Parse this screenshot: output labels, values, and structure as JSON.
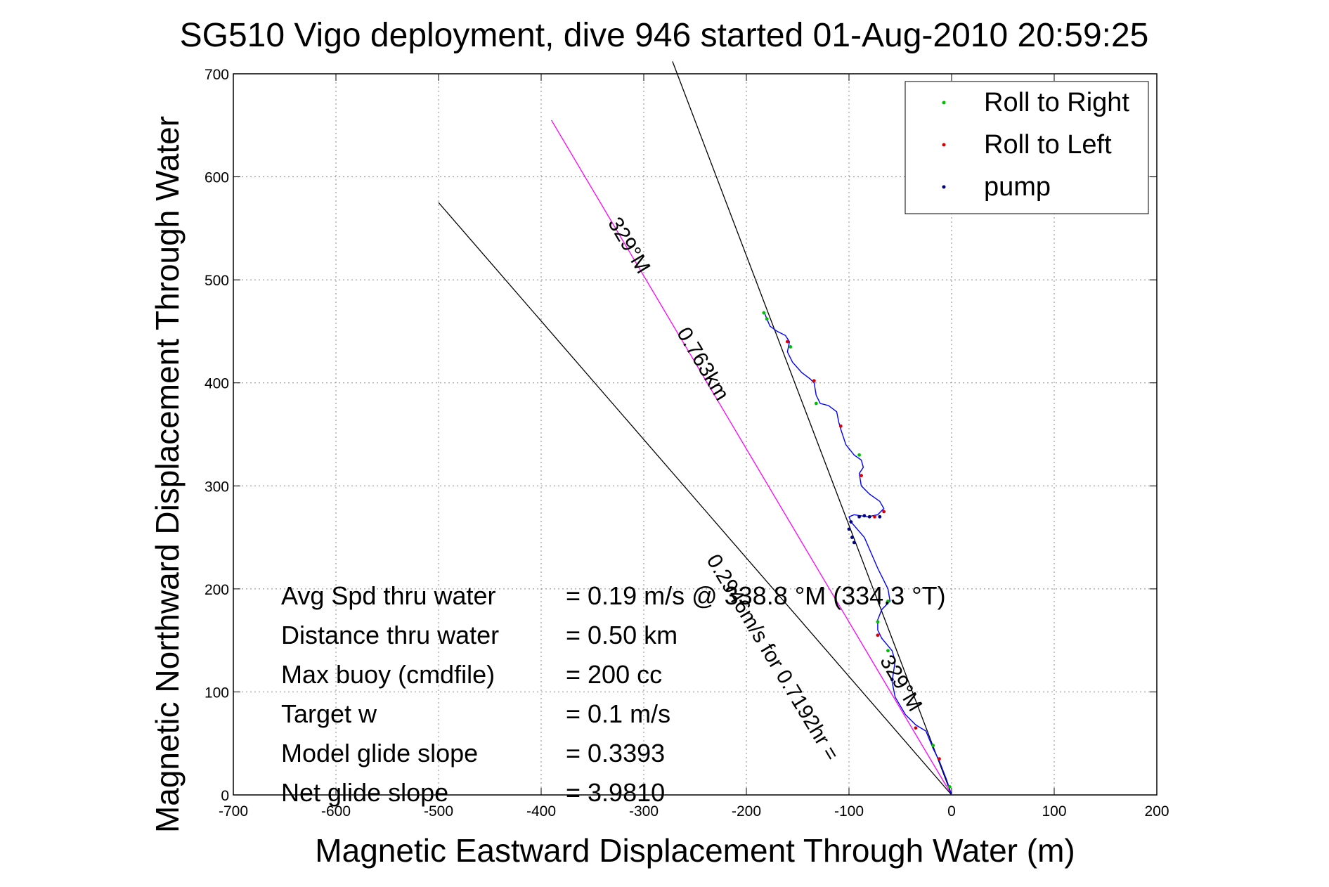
{
  "chart_data": {
    "type": "line",
    "title": "SG510 Vigo deployment, dive 946 started 01-Aug-2010 20:59:25",
    "xlabel": "Magnetic Eastward Displacement Through Water (m)",
    "ylabel": "Magnetic Northward Displacement Through Water",
    "xlim": [
      -700,
      200
    ],
    "ylim": [
      0,
      700
    ],
    "xticks": [
      "-700",
      "-600",
      "-500",
      "-400",
      "-300",
      "-200",
      "-100",
      "0",
      "100",
      "200"
    ],
    "yticks": [
      "0",
      "100",
      "200",
      "300",
      "400",
      "500",
      "600",
      "700"
    ],
    "xtick_values": [
      -700,
      -600,
      -500,
      -400,
      -300,
      -200,
      -100,
      0,
      100,
      200
    ],
    "ytick_values": [
      0,
      100,
      200,
      300,
      400,
      500,
      600,
      700
    ],
    "grid": true,
    "legend": {
      "placement": "top-right",
      "entries": [
        {
          "label": "Roll to Right",
          "color": "#00c000"
        },
        {
          "label": "Roll to Left",
          "color": "#e00000"
        },
        {
          "label": "pump",
          "color": "#000080"
        }
      ]
    },
    "track": {
      "color": "#0000ff",
      "points": [
        [
          0,
          0
        ],
        [
          -5,
          15
        ],
        [
          -12,
          33
        ],
        [
          -18,
          45
        ],
        [
          -25,
          62
        ],
        [
          -35,
          68
        ],
        [
          -45,
          78
        ],
        [
          -55,
          95
        ],
        [
          -58,
          110
        ],
        [
          -55,
          130
        ],
        [
          -58,
          140
        ],
        [
          -68,
          152
        ],
        [
          -72,
          160
        ],
        [
          -72,
          170
        ],
        [
          -68,
          180
        ],
        [
          -60,
          188
        ],
        [
          -62,
          200
        ],
        [
          -72,
          220
        ],
        [
          -85,
          250
        ],
        [
          -98,
          265
        ],
        [
          -100,
          270
        ],
        [
          -95,
          272
        ],
        [
          -82,
          270
        ],
        [
          -72,
          272
        ],
        [
          -66,
          278
        ],
        [
          -70,
          285
        ],
        [
          -80,
          292
        ],
        [
          -88,
          300
        ],
        [
          -90,
          312
        ],
        [
          -86,
          318
        ],
        [
          -88,
          325
        ],
        [
          -95,
          330
        ],
        [
          -103,
          340
        ],
        [
          -108,
          355
        ],
        [
          -110,
          362
        ],
        [
          -112,
          372
        ],
        [
          -120,
          378
        ],
        [
          -128,
          380
        ],
        [
          -132,
          388
        ],
        [
          -134,
          400
        ],
        [
          -138,
          404
        ],
        [
          -146,
          410
        ],
        [
          -155,
          420
        ],
        [
          -160,
          430
        ],
        [
          -158,
          440
        ],
        [
          -162,
          446
        ],
        [
          -170,
          450
        ],
        [
          -177,
          455
        ],
        [
          -180,
          462
        ],
        [
          -182,
          467
        ]
      ]
    },
    "roll_right_points": [
      [
        -2,
        8
      ],
      [
        -18,
        48
      ],
      [
        -62,
        140
      ],
      [
        -72,
        168
      ],
      [
        -62,
        188
      ],
      [
        -90,
        330
      ],
      [
        -132,
        380
      ],
      [
        -157,
        435
      ],
      [
        -180,
        462
      ],
      [
        -183,
        468
      ]
    ],
    "roll_left_points": [
      [
        -12,
        35
      ],
      [
        -35,
        65
      ],
      [
        -72,
        155
      ],
      [
        -88,
        310
      ],
      [
        -66,
        275
      ],
      [
        -75,
        270
      ],
      [
        -108,
        358
      ],
      [
        -134,
        402
      ],
      [
        -160,
        440
      ]
    ],
    "pump_points": [
      [
        -58,
        112
      ],
      [
        -98,
        265
      ],
      [
        -100,
        258
      ],
      [
        -97,
        250
      ],
      [
        -95,
        245
      ],
      [
        -90,
        270
      ],
      [
        -85,
        271
      ],
      [
        -80,
        270
      ],
      [
        -70,
        270
      ]
    ],
    "reference_lines": [
      {
        "name": "heading-line",
        "color": "#ff00ff",
        "points": [
          [
            0,
            0
          ],
          [
            -390,
            655
          ]
        ]
      },
      {
        "name": "black-line-steep",
        "color": "#000000",
        "points": [
          [
            0,
            0
          ],
          [
            -272,
            712
          ]
        ]
      },
      {
        "name": "black-line-shallow",
        "color": "#000000",
        "points": [
          [
            0,
            0
          ],
          [
            -500,
            575
          ]
        ]
      }
    ],
    "annotations": [
      {
        "text": "329°M",
        "at": [
          -320,
          530
        ],
        "angle": 59
      },
      {
        "text": "0.763km",
        "at": [
          -248,
          415
        ],
        "angle": 59
      },
      {
        "text": "0.2946m/s for 0.7192hr =",
        "at": [
          -180,
          130
        ],
        "angle": 59
      },
      {
        "text": "329°M",
        "at": [
          -55,
          105
        ],
        "angle": 59
      }
    ],
    "stats": [
      {
        "label": "Avg Spd thru water",
        "value": "=  0.19 m/s @ 338.8 °M (334.3 °T)"
      },
      {
        "label": "Distance thru water",
        "value": "=  0.50 km"
      },
      {
        "label": "Max buoy (cmdfile)",
        "value": "= 200 cc"
      },
      {
        "label": "Target w",
        "value": "= 0.1 m/s"
      },
      {
        "label": "Model glide slope",
        "value": "= 0.3393"
      },
      {
        "label": "Net glide slope",
        "value": "= 3.9810"
      }
    ]
  }
}
